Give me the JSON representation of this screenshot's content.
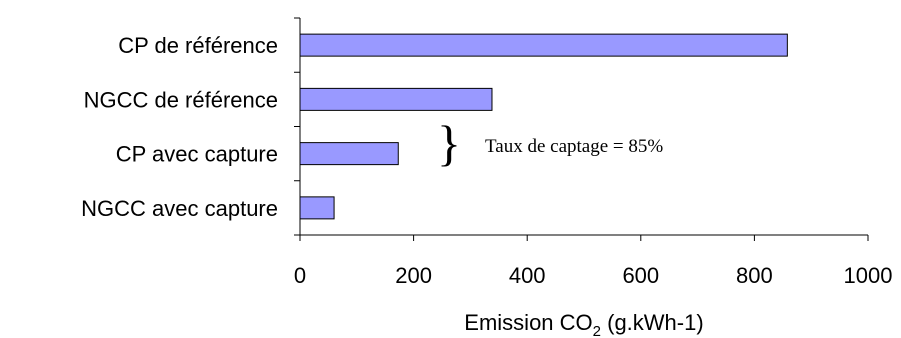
{
  "chart_data": {
    "type": "bar",
    "orientation": "horizontal",
    "categories": [
      "CP de référence",
      "NGCC de référence",
      "CP avec capture",
      "NGCC avec capture"
    ],
    "values": [
      858,
      338,
      173,
      60
    ],
    "xlabel_main": "Emission CO",
    "xlabel_sub": "2",
    "xlabel_tail": " (g.kWh-1)",
    "xlim": [
      0,
      1000
    ],
    "xticks": [
      0,
      200,
      400,
      600,
      800,
      1000
    ],
    "grid": false,
    "bar_color": "#9999FF",
    "annotation": {
      "text": "Taux de captage =  85%",
      "symbol": "}"
    }
  }
}
